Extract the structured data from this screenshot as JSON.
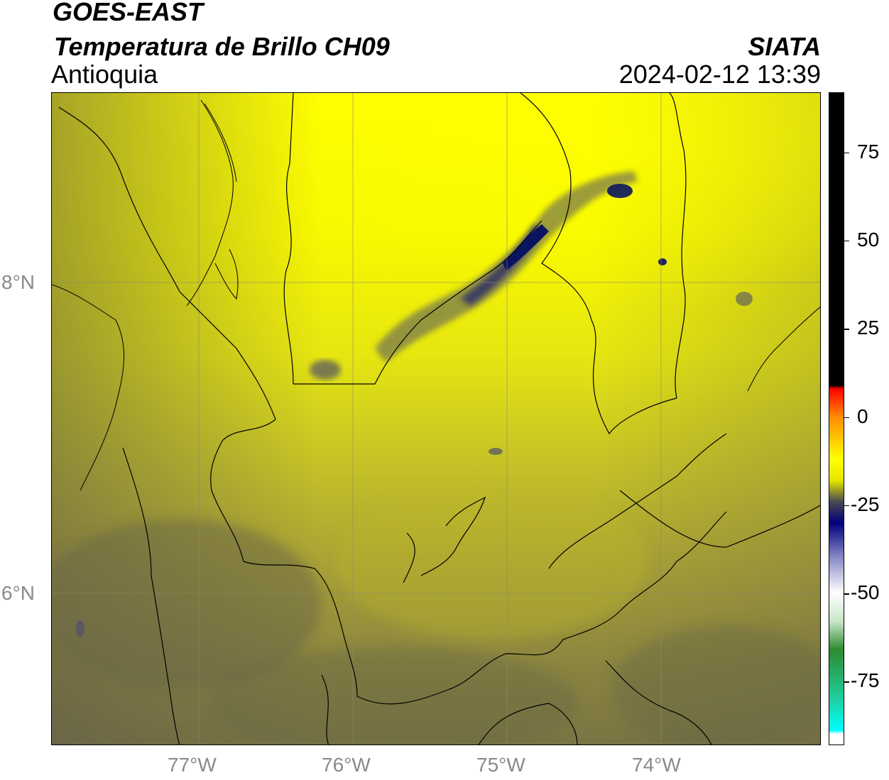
{
  "header": {
    "satellite": "GOES-EAST",
    "product": "Temperatura de Brillo CH09",
    "region": "Antioquia",
    "organization": "SIATA",
    "datetime": "2024-02-12 13:39"
  },
  "map": {
    "lon_range": [
      -77.95,
      -72.95
    ],
    "lat_range": [
      5.05,
      9.25
    ],
    "lon_ticks": [
      {
        "value": -77,
        "label": "77°W"
      },
      {
        "value": -76,
        "label": "76°W"
      },
      {
        "value": -75,
        "label": "75°W"
      },
      {
        "value": -74,
        "label": "74°W"
      }
    ],
    "lat_ticks": [
      {
        "value": 8,
        "label": "8°N"
      },
      {
        "value": 6,
        "label": "6°N"
      }
    ],
    "gridlines": true
  },
  "colorbar": {
    "range": [
      -93,
      92
    ],
    "ticks": [
      {
        "value": 75,
        "label": "75"
      },
      {
        "value": 50,
        "label": "50"
      },
      {
        "value": 25,
        "label": "25"
      },
      {
        "value": 0,
        "label": "0"
      },
      {
        "value": -25,
        "label": "-25"
      },
      {
        "value": -50,
        "label": "-50"
      },
      {
        "value": -75,
        "label": "-75"
      }
    ],
    "stops": [
      {
        "value": 92,
        "color": "#000000"
      },
      {
        "value": 9,
        "color": "#000000"
      },
      {
        "value": 8,
        "color": "#ff0000"
      },
      {
        "value": 0,
        "color": "#ff8c00"
      },
      {
        "value": -12,
        "color": "#ffff00"
      },
      {
        "value": -18,
        "color": "#e6e600"
      },
      {
        "value": -24,
        "color": "#4a4a50"
      },
      {
        "value": -30,
        "color": "#00007a"
      },
      {
        "value": -40,
        "color": "#8a8ac8"
      },
      {
        "value": -50,
        "color": "#ffffff"
      },
      {
        "value": -58,
        "color": "#c8e6c8"
      },
      {
        "value": -66,
        "color": "#2e8b2e"
      },
      {
        "value": -80,
        "color": "#1fcfa0"
      },
      {
        "value": -89,
        "color": "#00ffff"
      },
      {
        "value": -90,
        "color": "#ffffff"
      },
      {
        "value": -93,
        "color": "#ffffff"
      }
    ]
  },
  "legend_colors": {
    "warm_yellow": "#ffff00",
    "mid_olive": "#c8c820",
    "cold_olive": "#6e6e45",
    "cloud_navy": "#0a1460"
  }
}
